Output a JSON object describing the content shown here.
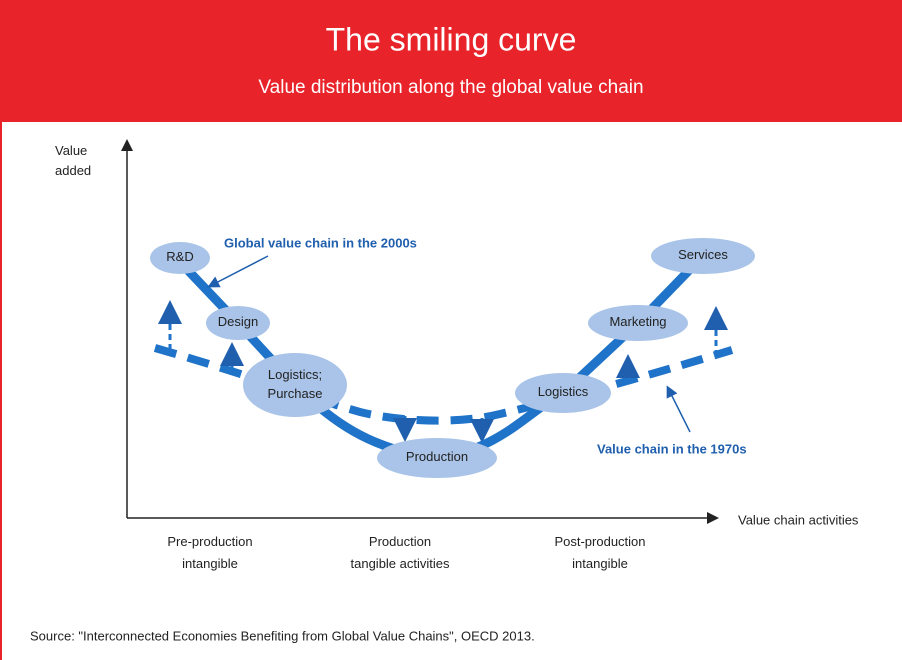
{
  "header": {
    "title": "The smiling curve",
    "subtitle": "Value distribution along the global value chain"
  },
  "axes": {
    "y_label": [
      "Value",
      "added"
    ],
    "x_label": "Value chain activities"
  },
  "nodes": [
    {
      "label": [
        "R&D"
      ]
    },
    {
      "label": [
        "Design"
      ]
    },
    {
      "label": [
        "Logistics;",
        "Purchase"
      ]
    },
    {
      "label": [
        "Production"
      ]
    },
    {
      "label": [
        "Logistics"
      ]
    },
    {
      "label": [
        "Marketing"
      ]
    },
    {
      "label": [
        "Services"
      ]
    }
  ],
  "annotations": [
    "Global value chain in the 2000s",
    "Value chain in the 1970s"
  ],
  "stages": [
    [
      "Pre-production",
      "intangible"
    ],
    [
      "Production",
      "tangible activities"
    ],
    [
      "Post-production",
      "intangible"
    ]
  ],
  "source": "Source: \"Interconnected Economies Benefiting from Global Value Chains\", OECD 2013."
}
